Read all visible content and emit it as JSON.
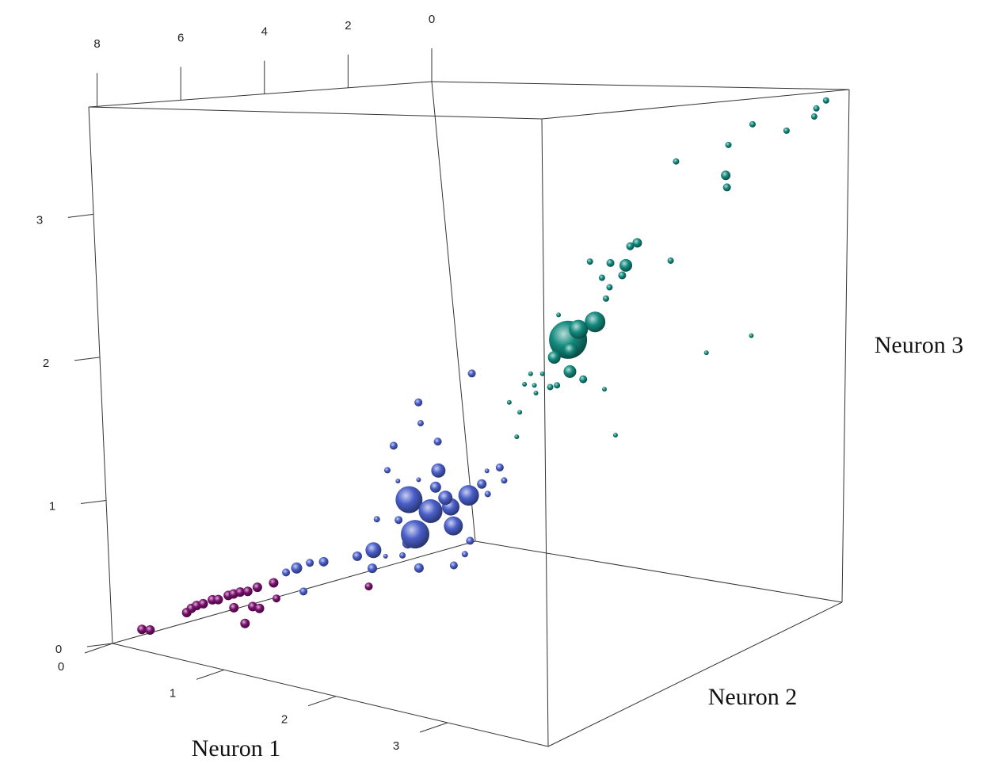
{
  "chart_data": {
    "type": "scatter3d",
    "x_label": "Neuron 1",
    "y_label": "Neuron 2",
    "z_label": "Neuron 3",
    "xlim": [
      0,
      3.9
    ],
    "ylim": [
      0,
      8.2
    ],
    "zlim": [
      0,
      3.75
    ],
    "xticks": [
      0,
      1,
      2,
      3
    ],
    "yticks": [
      0,
      2,
      4,
      6,
      8
    ],
    "zticks": [
      0,
      1,
      2,
      3
    ],
    "series": [
      {
        "color": "#7a0f6e",
        "x": [
          0.05,
          0.05,
          0.05,
          0.05,
          0.05,
          0.05,
          0.05,
          0.05,
          0.05,
          0.05,
          0.05,
          0.05,
          0.05,
          0.05,
          0.05,
          0.05,
          0.2,
          0.05,
          0.4,
          1.2
        ],
        "y": [
          7.65,
          7.47,
          6.63,
          6.52,
          6.4,
          6.25,
          6.04,
          5.91,
          5.68,
          5.56,
          5.41,
          5.24,
          5.02,
          4.65,
          5.57,
          5.15,
          5.35,
          4.61,
          6.17,
          5.22
        ],
        "z": [
          0.06,
          0.04,
          0.09,
          0.11,
          0.12,
          0.12,
          0.13,
          0.12,
          0.13,
          0.13,
          0.13,
          0.12,
          0.13,
          0.13,
          0.03,
          0.0,
          0.03,
          0.01,
          0.03,
          0.33
        ],
        "size": [
          6,
          6,
          6,
          6,
          6,
          6,
          6,
          6,
          6,
          6,
          6,
          6,
          6,
          6,
          6,
          6,
          6,
          5,
          6,
          5
        ]
      },
      {
        "color": "#4a5fc9",
        "x": [
          0.6,
          0.6,
          0.6,
          0.6,
          0.6,
          0.6,
          0.6,
          0.6,
          0.6,
          0.6,
          0.6,
          0.6,
          0.6,
          0.6,
          0.6,
          0.6,
          0.6,
          0.6,
          0.6,
          0.6,
          0.6,
          0.6,
          0.6,
          0.6,
          0.6,
          0.6,
          0.6,
          0.6,
          0.6,
          0.6,
          0.6,
          0.6,
          0.6,
          0.6,
          0.6,
          0.6,
          0.6,
          0.6,
          0.6
        ],
        "y": [
          5.41,
          5.28,
          5.1,
          4.78,
          5.66,
          4.0,
          3.62,
          3.67,
          3.5,
          3.35,
          2.96,
          2.82,
          2.6,
          2.64,
          2.73,
          2.25,
          1.78,
          1.75,
          1.35,
          2.01,
          2.1,
          1.89,
          3.0,
          3.19,
          3.01,
          1.98,
          2.37,
          2.35,
          1.08,
          1.03,
          0.91,
          0.59,
          0.51,
          0.89,
          1.39,
          1.53,
          1.8,
          2.48,
          2.96
        ],
        "z": [
          0.39,
          0.21,
          0.4,
          0.38,
          0.38,
          0.35,
          0.36,
          0.23,
          0.58,
          0.29,
          0.26,
          0.34,
          0.13,
          0.39,
          0.66,
          0.53,
          0.52,
          0.37,
          0.57,
          0.82,
          0.7,
          0.6,
          0.53,
          0.92,
          1.09,
          1.04,
          1.37,
          1.21,
          1.5,
          0.63,
          0.54,
          0.72,
          0.61,
          0.72,
          0.22,
          0.13,
          0.07,
          0.79,
          0.82
        ],
        "size": [
          7,
          5,
          5,
          6,
          5,
          6,
          10,
          6,
          4,
          3,
          4,
          7,
          6,
          18,
          17,
          15,
          11,
          12,
          13,
          9,
          7,
          9,
          5,
          4,
          5,
          5,
          5,
          4,
          5,
          6,
          4,
          5,
          4,
          3,
          5,
          4,
          5,
          3,
          3
        ]
      },
      {
        "color": "#138a7e",
        "x": [
          3.72,
          3.63,
          3.61,
          3.03,
          3.35,
          2.8,
          2.3,
          2.77,
          2.78,
          1.9,
          1.83,
          1.78,
          1.63,
          1.43,
          1.54,
          1.74,
          1.61,
          1.57,
          2.22,
          1.45,
          1.17,
          1.28,
          1.19,
          1.02,
          1.17,
          1.3,
          1.03,
          0.96,
          0.8,
          0.77,
          0.89,
          0.81,
          0.7,
          0.53,
          0.63,
          0.58,
          1.51,
          1.6,
          2.55,
          3.0,
          1.09
        ],
        "y": [
          0.1,
          0.1,
          0.1,
          0.1,
          0.1,
          0.1,
          0.1,
          0.1,
          0.1,
          0.1,
          0.1,
          0.1,
          0.1,
          0.1,
          0.1,
          0.1,
          0.1,
          0.1,
          0.1,
          0.1,
          0.1,
          0.1,
          0.1,
          0.1,
          0.1,
          0.1,
          0.1,
          0.1,
          0.1,
          0.1,
          0.1,
          0.1,
          0.1,
          0.1,
          0.1,
          0.1,
          0.1,
          0.1,
          0.1,
          0.1,
          0.1
        ],
        "z": [
          3.67,
          3.61,
          3.55,
          3.48,
          3.44,
          3.32,
          3.18,
          3.09,
          3.0,
          2.54,
          2.51,
          2.36,
          2.37,
          2.37,
          2.25,
          2.28,
          2.18,
          2.09,
          2.42,
          1.9,
          1.74,
          1.83,
          1.66,
          1.59,
          1.49,
          1.44,
          1.37,
          1.35,
          1.35,
          1.44,
          1.45,
          1.29,
          1.35,
          1.19,
          1.12,
          0.92,
          1.38,
          1.03,
          1.74,
          1.9,
          1.93
        ],
        "size": [
          4,
          4,
          4,
          4,
          4,
          4,
          4,
          6,
          5,
          6,
          5,
          8,
          5,
          4,
          4,
          5,
          4,
          4,
          4,
          13,
          24,
          12,
          9,
          8,
          8,
          5,
          4,
          4,
          3,
          3,
          3,
          3,
          3,
          3,
          3,
          3,
          3,
          3,
          3,
          3,
          3
        ]
      }
    ]
  }
}
